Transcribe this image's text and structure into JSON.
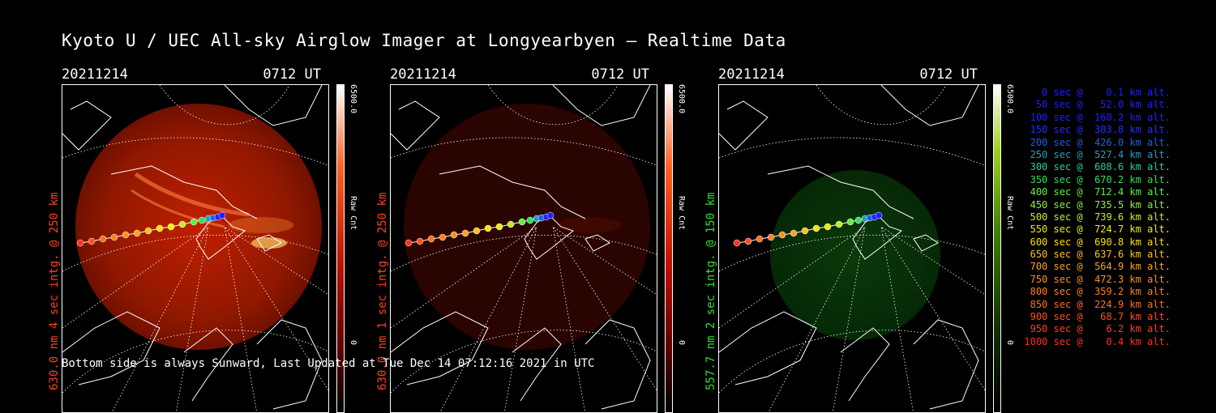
{
  "title": "Kyoto U / UEC All-sky Airglow Imager at Longyearbyen — Realtime Data",
  "footer": "Bottom side is always Sunward, Last Updated at Tue Dec 14 07:12:16 2021 in UTC",
  "panels": [
    {
      "date": "20211214",
      "time": "0712 UT",
      "ylabel": "630.0 nm 4 sec intg. @ 250 km",
      "cbar_max": "6500.0",
      "cbar_min": "0",
      "cbar_unit": "Raw Cnt",
      "color": "#ff4020"
    },
    {
      "date": "20211214",
      "time": "0712 UT",
      "ylabel": "630.0 nm 1 sec intg. @ 250 km",
      "cbar_max": "6500.0",
      "cbar_min": "0",
      "cbar_unit": "Raw Cnt",
      "color": "#ff4020"
    },
    {
      "date": "20211214",
      "time": "0712 UT",
      "ylabel": "557.7 nm 2 sec intg. @ 150 km",
      "cbar_max": "6500.0",
      "cbar_min": "0",
      "cbar_unit": "Raw Cnt",
      "color": "#30e030"
    }
  ],
  "legend": [
    {
      "text": "0 sec @    0.1 km alt.",
      "color": "#2020ff"
    },
    {
      "text": "50 sec @   52.0 km alt.",
      "color": "#2020ff"
    },
    {
      "text": "100 sec @  160.2 km alt.",
      "color": "#2020ff"
    },
    {
      "text": "150 sec @  303.8 km alt.",
      "color": "#2030ff"
    },
    {
      "text": "200 sec @  426.0 km alt.",
      "color": "#2060e0"
    },
    {
      "text": "250 sec @  527.4 km alt.",
      "color": "#20a0c0"
    },
    {
      "text": "300 sec @  608.6 km alt.",
      "color": "#20d0a0"
    },
    {
      "text": "350 sec @  670.2 km alt.",
      "color": "#30e060"
    },
    {
      "text": "400 sec @  712.4 km alt.",
      "color": "#60f040"
    },
    {
      "text": "450 sec @  735.5 km alt.",
      "color": "#90f030"
    },
    {
      "text": "500 sec @  739.6 km alt.",
      "color": "#c0f020"
    },
    {
      "text": "550 sec @  724.7 km alt.",
      "color": "#e8f010"
    },
    {
      "text": "600 sec @  690.8 km alt.",
      "color": "#ffe010"
    },
    {
      "text": "650 sec @  637.6 km alt.",
      "color": "#ffc020"
    },
    {
      "text": "700 sec @  564.9 km alt.",
      "color": "#ffa020"
    },
    {
      "text": "750 sec @  472.3 km alt.",
      "color": "#ff9020"
    },
    {
      "text": "800 sec @  359.2 km alt.",
      "color": "#ff8020"
    },
    {
      "text": "850 sec @  224.9 km alt.",
      "color": "#ff7020"
    },
    {
      "text": "900 sec @   68.7 km alt.",
      "color": "#ff5020"
    },
    {
      "text": "950 sec @    6.2 km alt.",
      "color": "#ff4020"
    },
    {
      "text": "1000 sec @    0.4 km alt.",
      "color": "#ff3020"
    }
  ]
}
